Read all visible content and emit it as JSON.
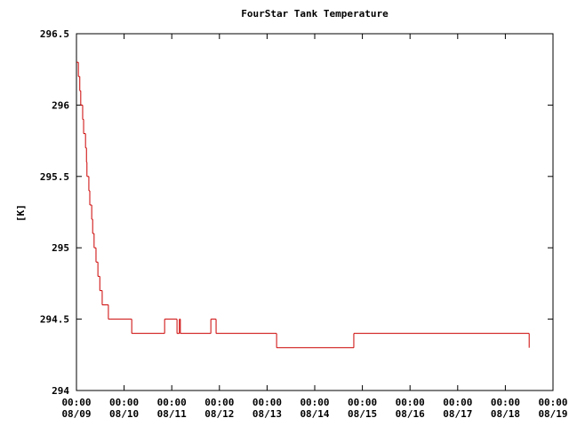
{
  "chart_data": {
    "type": "step",
    "title": "FourStar Tank Temperature",
    "ylabel": "[K]",
    "x": [
      0,
      0.04,
      0.07,
      0.09,
      0.13,
      0.15,
      0.19,
      0.21,
      0.22,
      0.26,
      0.28,
      0.32,
      0.34,
      0.37,
      0.41,
      0.45,
      0.49,
      0.54,
      0.67,
      1.16,
      1.85,
      2.11,
      2.16,
      2.18,
      2.82,
      2.93,
      4.2,
      5.82,
      9.5
    ],
    "values": [
      296.3,
      296.2,
      296.1,
      296.0,
      295.9,
      295.8,
      295.7,
      295.6,
      295.5,
      295.4,
      295.3,
      295.2,
      295.1,
      295.0,
      294.9,
      294.8,
      294.7,
      294.6,
      294.5,
      294.4,
      294.5,
      294.4,
      294.5,
      294.4,
      294.5,
      294.4,
      294.3,
      294.4,
      294.3
    ],
    "color": "#cc0000",
    "xlim": [
      0,
      10
    ],
    "xticks": [
      {
        "value": 0,
        "label": [
          "00:00",
          "08/09"
        ]
      },
      {
        "value": 1,
        "label": [
          "00:00",
          "08/10"
        ]
      },
      {
        "value": 2,
        "label": [
          "00:00",
          "08/11"
        ]
      },
      {
        "value": 3,
        "label": [
          "00:00",
          "08/12"
        ]
      },
      {
        "value": 4,
        "label": [
          "00:00",
          "08/13"
        ]
      },
      {
        "value": 5,
        "label": [
          "00:00",
          "08/14"
        ]
      },
      {
        "value": 6,
        "label": [
          "00:00",
          "08/15"
        ]
      },
      {
        "value": 7,
        "label": [
          "00:00",
          "08/16"
        ]
      },
      {
        "value": 8,
        "label": [
          "00:00",
          "08/17"
        ]
      },
      {
        "value": 9,
        "label": [
          "00:00",
          "08/18"
        ]
      },
      {
        "value": 10,
        "label": [
          "00:00",
          "08/19"
        ]
      }
    ],
    "ylim": [
      294,
      296.5
    ],
    "yticks": [
      294,
      294.5,
      295,
      295.5,
      296,
      296.5
    ],
    "grid": false
  }
}
